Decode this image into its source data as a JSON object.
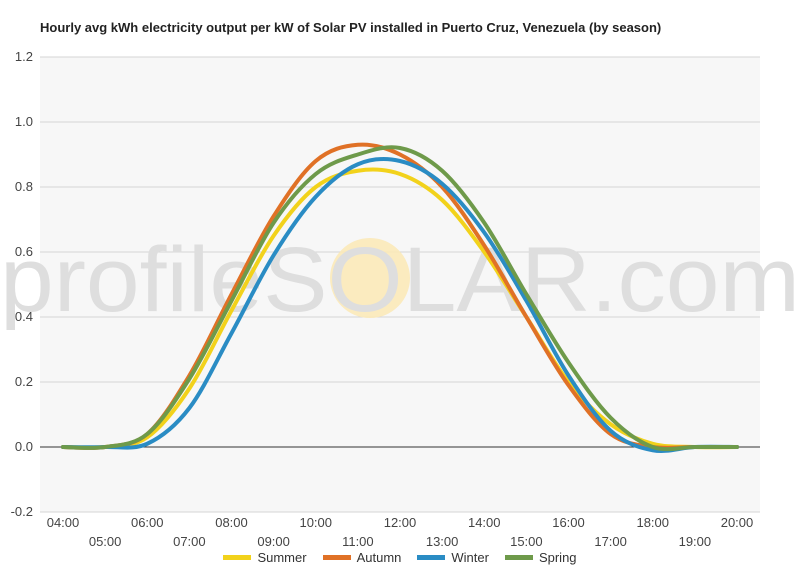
{
  "chart_data": {
    "type": "line",
    "title": "Hourly avg kWh electricity output per kW of Solar PV installed in Puerto Cruz, Venezuela (by season)",
    "xlabel": "",
    "ylabel": "",
    "x_ticks": [
      "04:00",
      "05:00",
      "06:00",
      "07:00",
      "08:00",
      "09:00",
      "10:00",
      "11:00",
      "12:00",
      "13:00",
      "14:00",
      "15:00",
      "16:00",
      "17:00",
      "18:00",
      "19:00",
      "20:00"
    ],
    "ylim": [
      -0.2,
      1.2
    ],
    "y_ticks": [
      "-0.2",
      "0.0",
      "0.2",
      "0.4",
      "0.6",
      "0.8",
      "1.0",
      "1.2"
    ],
    "grid": true,
    "legend_position": "bottom",
    "watermark": "profileSOLAR.com",
    "series": [
      {
        "name": "Summer",
        "color": "#f2d21b",
        "values": [
          0,
          0,
          0.03,
          0.18,
          0.42,
          0.65,
          0.8,
          0.85,
          0.84,
          0.76,
          0.6,
          0.4,
          0.2,
          0.07,
          0.01,
          0,
          0
        ]
      },
      {
        "name": "Autumn",
        "color": "#e07126",
        "values": [
          0,
          0,
          0.04,
          0.22,
          0.47,
          0.71,
          0.88,
          0.93,
          0.9,
          0.8,
          0.62,
          0.4,
          0.19,
          0.04,
          0,
          0,
          0
        ]
      },
      {
        "name": "Winter",
        "color": "#2a8cc4",
        "values": [
          0,
          0,
          0.01,
          0.12,
          0.35,
          0.59,
          0.77,
          0.87,
          0.88,
          0.81,
          0.66,
          0.45,
          0.22,
          0.05,
          -0.01,
          0,
          0
        ]
      },
      {
        "name": "Spring",
        "color": "#6e9a4a",
        "values": [
          0,
          0,
          0.04,
          0.21,
          0.45,
          0.69,
          0.84,
          0.9,
          0.92,
          0.85,
          0.69,
          0.47,
          0.26,
          0.09,
          0,
          0,
          0
        ]
      }
    ]
  }
}
